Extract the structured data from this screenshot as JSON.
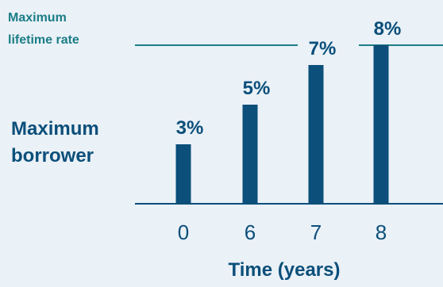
{
  "chart_data": {
    "type": "bar",
    "categories": [
      "0",
      "6",
      "7",
      "8"
    ],
    "values": [
      3,
      5,
      7,
      8
    ],
    "data_labels": [
      "3%",
      "5%",
      "7%",
      "8%"
    ],
    "xlabel": "Time (years)",
    "ylabel": "Maximum borrower",
    "ylabel_lines": [
      "Maximum",
      "borrower"
    ],
    "reference_line": {
      "value": 8,
      "label": "Maximum lifetime rate",
      "label_lines": [
        "Maximum",
        "lifetime rate"
      ]
    },
    "ylim": [
      0,
      8
    ],
    "grid": false,
    "colors": {
      "bar": "#0b4f7a",
      "axis": "#0b4f7a",
      "reference": "#1b7d86",
      "text": "#0b4f7a",
      "background": "#eaf1f7"
    }
  }
}
